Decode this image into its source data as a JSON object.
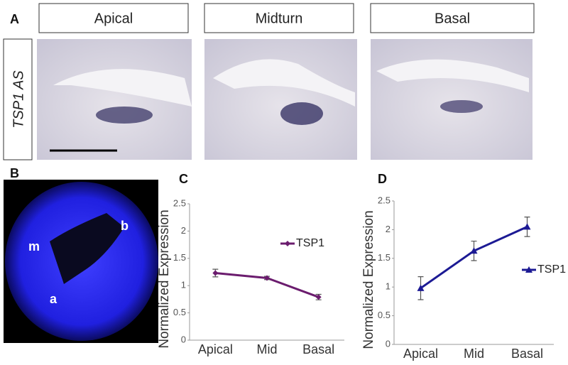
{
  "panel_labels": [
    "A",
    "B",
    "C",
    "D"
  ],
  "image_headers": [
    "Apical",
    "Midturn",
    "Basal"
  ],
  "row_label": "TSP1 AS",
  "wholemount_labels": [
    "m",
    "b",
    "a"
  ],
  "chart_data": [
    {
      "type": "line",
      "categories": [
        "Apical",
        "Mid",
        "Basal"
      ],
      "y_label": "Normalized Expression",
      "ylim": [
        0,
        2.5
      ],
      "yticks": [
        0,
        0.5,
        1,
        1.5,
        2,
        2.5
      ],
      "grid": false,
      "series": [
        {
          "name": "TSP1",
          "color": "#6b1c6e",
          "marker": "diamond",
          "values": [
            1.23,
            1.14,
            0.79
          ],
          "errors": [
            0.07,
            0.03,
            0.05
          ]
        }
      ]
    },
    {
      "type": "line",
      "categories": [
        "Apical",
        "Mid",
        "Basal"
      ],
      "y_label": "Normalized Expression",
      "ylim": [
        0,
        2.5
      ],
      "yticks": [
        0,
        0.5,
        1,
        1.5,
        2,
        2.5
      ],
      "grid": false,
      "series": [
        {
          "name": "TSP1",
          "color": "#1c1a94",
          "marker": "triangle",
          "values": [
            0.98,
            1.63,
            2.05
          ],
          "errors": [
            0.2,
            0.17,
            0.17
          ]
        }
      ]
    }
  ]
}
